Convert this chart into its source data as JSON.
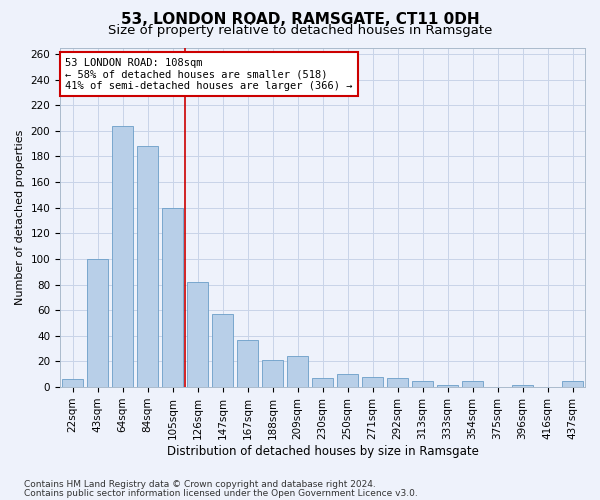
{
  "title": "53, LONDON ROAD, RAMSGATE, CT11 0DH",
  "subtitle": "Size of property relative to detached houses in Ramsgate",
  "xlabel": "Distribution of detached houses by size in Ramsgate",
  "ylabel": "Number of detached properties",
  "categories": [
    "22sqm",
    "43sqm",
    "64sqm",
    "84sqm",
    "105sqm",
    "126sqm",
    "147sqm",
    "167sqm",
    "188sqm",
    "209sqm",
    "230sqm",
    "250sqm",
    "271sqm",
    "292sqm",
    "313sqm",
    "333sqm",
    "354sqm",
    "375sqm",
    "396sqm",
    "416sqm",
    "437sqm"
  ],
  "values": [
    6,
    100,
    204,
    188,
    140,
    82,
    57,
    37,
    21,
    24,
    7,
    10,
    8,
    7,
    5,
    2,
    5,
    0,
    2,
    0,
    5
  ],
  "bar_color": "#b8cfe8",
  "bar_edge_color": "#6a9ec8",
  "red_line_color": "#cc0000",
  "red_line_index": 4.5,
  "annotation_line1": "53 LONDON ROAD: 108sqm",
  "annotation_line2": "← 58% of detached houses are smaller (518)",
  "annotation_line3": "41% of semi-detached houses are larger (366) →",
  "annotation_box_fc": "#ffffff",
  "annotation_box_ec": "#cc0000",
  "ylim": [
    0,
    265
  ],
  "yticks": [
    0,
    20,
    40,
    60,
    80,
    100,
    120,
    140,
    160,
    180,
    200,
    220,
    240,
    260
  ],
  "footer_line1": "Contains HM Land Registry data © Crown copyright and database right 2024.",
  "footer_line2": "Contains public sector information licensed under the Open Government Licence v3.0.",
  "bg_color": "#eef2fb",
  "grid_color": "#c8d4e8",
  "title_fontsize": 11,
  "subtitle_fontsize": 9.5,
  "ylabel_fontsize": 8,
  "xlabel_fontsize": 8.5,
  "tick_fontsize": 7.5,
  "annotation_fontsize": 7.5,
  "footer_fontsize": 6.5
}
